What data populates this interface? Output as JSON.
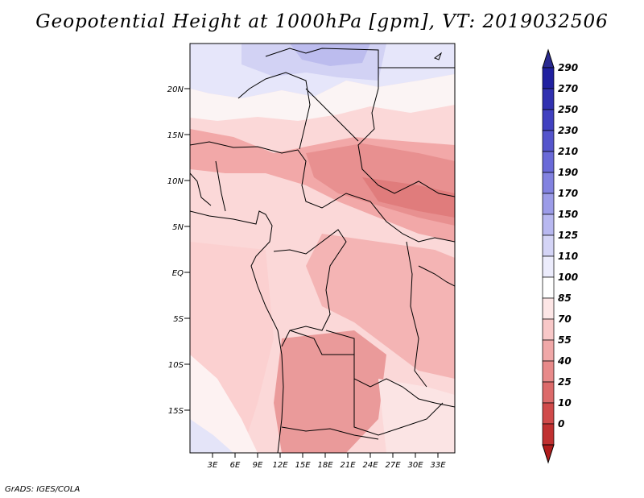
{
  "title": "Geopotential Height at 1000hPa [gpm], VT: 2019032506",
  "footer": "GrADS: IGES/COLA",
  "map": {
    "lat_labels": [
      "20N",
      "15N",
      "10N",
      "5N",
      "EQ",
      "5S",
      "10S",
      "15S"
    ],
    "lon_labels": [
      "3E",
      "6E",
      "9E",
      "12E",
      "15E",
      "18E",
      "21E",
      "24E",
      "27E",
      "30E",
      "33E"
    ]
  },
  "colorbar": {
    "labels": [
      "290",
      "270",
      "250",
      "230",
      "210",
      "190",
      "170",
      "150",
      "125",
      "110",
      "100",
      "85",
      "70",
      "55",
      "40",
      "25",
      "10",
      "0"
    ],
    "colors": [
      "#2020a0",
      "#3030b0",
      "#4040c0",
      "#5555cc",
      "#6a6ad8",
      "#8282e0",
      "#9c9ce8",
      "#b8b8f0",
      "#d4d4f6",
      "#ececfc",
      "#ffffff",
      "#fde6e6",
      "#f8c8c8",
      "#f0a8a8",
      "#e88a8a",
      "#dc6a6a",
      "#d04a4a",
      "#c03030",
      "#a82020"
    ],
    "arrow_top": "#2a2a90",
    "arrow_bottom": "#b01c1c"
  }
}
